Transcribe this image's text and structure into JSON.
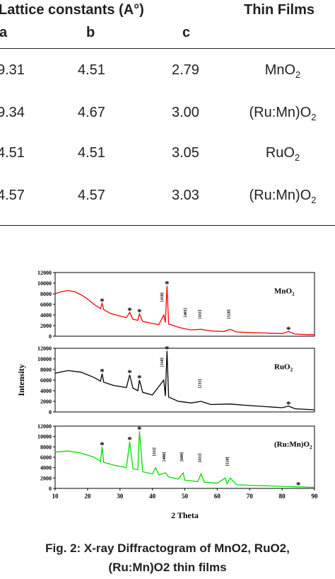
{
  "table": {
    "header": [
      "Lattice constants (A°)",
      "Thin Films"
    ],
    "columns": [
      "a",
      "b",
      "c"
    ],
    "rows": [
      {
        "values": [
          "9.31",
          "4.51",
          "2.79"
        ],
        "film": {
          "base": "MnO",
          "sub": "2"
        }
      },
      {
        "values": [
          "9.34",
          "4.67",
          "3.00"
        ],
        "film": {
          "base": "(Ru:Mn)O",
          "sub": "2"
        }
      },
      {
        "values": [
          "4.51",
          "4.51",
          "3.05"
        ],
        "film": {
          "base": "RuO",
          "sub": "2"
        }
      },
      {
        "values": [
          "4.57",
          "4.57",
          "3.03"
        ],
        "film": {
          "base": "(Ru:Mn)O",
          "sub": "2"
        }
      }
    ]
  },
  "chart_data": [
    {
      "type": "line",
      "label": {
        "base": "MnO",
        "sub": "2"
      },
      "color": "#ff0000",
      "xlim": [
        10,
        90
      ],
      "ylim": [
        0,
        12000
      ],
      "yticks": [
        0,
        2000,
        4000,
        6000,
        8000,
        10000,
        12000
      ],
      "x": [
        10,
        12,
        14,
        16,
        18,
        20,
        22,
        24,
        24.5,
        25,
        27,
        30,
        32,
        33,
        34,
        35.5,
        36,
        37,
        40,
        42,
        43.5,
        44,
        44.5,
        45,
        48,
        50,
        52,
        55,
        58,
        62,
        64,
        66,
        70,
        75,
        80,
        82,
        84,
        88,
        90
      ],
      "values": [
        8000,
        8400,
        8600,
        8400,
        7800,
        7000,
        6000,
        5200,
        6200,
        5000,
        4300,
        3800,
        3500,
        4500,
        3200,
        3000,
        4200,
        2800,
        2400,
        2200,
        4000,
        2600,
        9500,
        2300,
        1700,
        1400,
        1200,
        1300,
        1000,
        900,
        1300,
        800,
        700,
        600,
        500,
        900,
        400,
        300,
        300
      ],
      "annotations": [
        {
          "text": "*",
          "x": 24.5,
          "y": 6800
        },
        {
          "text": "*",
          "x": 33,
          "y": 5100
        },
        {
          "text": "*",
          "x": 36,
          "y": 4800
        },
        {
          "text": "*",
          "x": 44.5,
          "y": 10100
        },
        {
          "text": "[410]",
          "x": 43.3,
          "y": 6500
        },
        {
          "text": "[401]",
          "x": 50.5,
          "y": 3600
        },
        {
          "text": "[411]",
          "x": 55,
          "y": 3300
        },
        {
          "text": "[520]",
          "x": 64,
          "y": 3300
        },
        {
          "text": "*",
          "x": 82,
          "y": 1500
        }
      ]
    },
    {
      "type": "line",
      "label": {
        "base": "RuO",
        "sub": "2"
      },
      "color": "#000000",
      "ylabel": "Intensity",
      "xlim": [
        10,
        90
      ],
      "ylim": [
        0,
        12000
      ],
      "yticks": [
        0,
        2000,
        4000,
        6000,
        8000,
        10000,
        12000
      ],
      "x": [
        10,
        14,
        18,
        22,
        24,
        24.5,
        25,
        28,
        32,
        33,
        34,
        35.5,
        36,
        37,
        40,
        43.5,
        44,
        44.5,
        45,
        48,
        52,
        55,
        58,
        64,
        70,
        75,
        80,
        82,
        84,
        90
      ],
      "values": [
        7300,
        7800,
        7500,
        6500,
        5800,
        7200,
        5600,
        5000,
        4600,
        7000,
        4500,
        4000,
        6000,
        3700,
        3200,
        6000,
        3000,
        11500,
        2800,
        2000,
        1700,
        2000,
        1400,
        1500,
        1200,
        1000,
        800,
        1100,
        600,
        400
      ],
      "annotations": [
        {
          "text": "*",
          "x": 24.5,
          "y": 7800
        },
        {
          "text": "*",
          "x": 33,
          "y": 7600
        },
        {
          "text": "*",
          "x": 36,
          "y": 6600
        },
        {
          "text": "*",
          "x": 44.5,
          "y": 12100
        },
        {
          "text": "[310]",
          "x": 43.3,
          "y": 8500
        },
        {
          "text": "[211]",
          "x": 55,
          "y": 4500
        },
        {
          "text": "*",
          "x": 82,
          "y": 1700
        }
      ]
    },
    {
      "type": "line",
      "label": {
        "base": "(Ru:Mn)O",
        "sub": "2"
      },
      "color": "#00e000",
      "xlabel": "2 Theta",
      "xlim": [
        10,
        90
      ],
      "ylim": [
        0,
        12000
      ],
      "yticks": [
        0,
        2000,
        4000,
        6000,
        8000,
        10000,
        12000
      ],
      "xticks": [
        10,
        20,
        30,
        40,
        50,
        60,
        70,
        80,
        90
      ],
      "x": [
        10,
        14,
        18,
        22,
        24,
        24.5,
        25,
        28,
        32,
        33,
        34,
        35.5,
        36,
        37,
        40,
        41,
        42,
        44,
        45,
        48,
        49.5,
        50,
        54,
        55,
        56,
        60,
        62.5,
        63,
        64,
        66,
        70,
        75,
        80,
        85,
        90
      ],
      "values": [
        7000,
        7200,
        6800,
        6000,
        5200,
        8000,
        5000,
        4500,
        4000,
        9000,
        3800,
        3600,
        11000,
        3200,
        2800,
        4000,
        2600,
        3000,
        2200,
        1800,
        3000,
        1600,
        1300,
        2800,
        1200,
        1000,
        2000,
        900,
        2000,
        700,
        600,
        500,
        400,
        300,
        200
      ],
      "annotations": [
        {
          "text": "*",
          "x": 24.5,
          "y": 8600
        },
        {
          "text": "*",
          "x": 33,
          "y": 9600
        },
        {
          "text": "*",
          "x": 36,
          "y": 11600
        },
        {
          "text": "[111]",
          "x": 41,
          "y": 6200
        },
        {
          "text": "[400]",
          "x": 44,
          "y": 5200
        },
        {
          "text": "[600]",
          "x": 49.5,
          "y": 5200
        },
        {
          "text": "[411]",
          "x": 55,
          "y": 5000
        },
        {
          "text": "[520]",
          "x": 63.5,
          "y": 4300
        },
        {
          "text": "*",
          "x": 85,
          "y": 900
        }
      ]
    }
  ],
  "caption": [
    "Fig. 2: X-ray Diffractogram of MnO2, RuO2,",
    "(Ru:Mn)O2 thin films"
  ]
}
